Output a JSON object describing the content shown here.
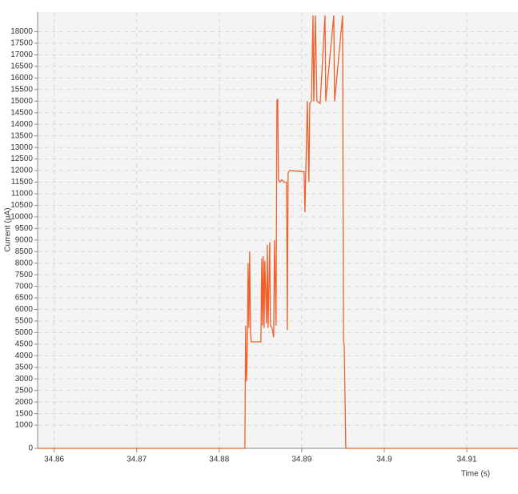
{
  "chart_data": {
    "type": "line",
    "y_label": "Current (µA)",
    "x_label": "Time (s)",
    "color": "#f0602a",
    "grid": true,
    "xlim": [
      34.858,
      34.9162
    ],
    "xticks": [
      34.86,
      34.87,
      34.88,
      34.89,
      34.9,
      34.91
    ],
    "ylim": [
      0,
      18850
    ],
    "yticks": [
      0,
      1000,
      1500,
      2000,
      2500,
      3000,
      3500,
      4000,
      4500,
      5000,
      5500,
      6000,
      6500,
      7000,
      7500,
      8000,
      8500,
      9000,
      9500,
      10000,
      10500,
      11000,
      11500,
      12000,
      12500,
      13000,
      13500,
      14000,
      14500,
      15000,
      15500,
      16000,
      16500,
      17000,
      17500,
      18000
    ],
    "x": [
      34.858,
      34.88311,
      34.8832,
      34.8833,
      34.8834,
      34.8835,
      34.88359,
      34.88369,
      34.88379,
      34.88388,
      34.88505,
      34.88515,
      34.88524,
      34.88534,
      34.88544,
      34.88553,
      34.88573,
      34.88583,
      34.88592,
      34.88612,
      34.88621,
      34.88641,
      34.8866,
      34.8867,
      34.88689,
      34.88699,
      34.88709,
      34.88718,
      34.88738,
      34.88757,
      34.88786,
      34.88816,
      34.88825,
      34.88835,
      34.88854,
      34.89029,
      34.89039,
      34.89049,
      34.89068,
      34.89087,
      34.89097,
      34.89117,
      34.89136,
      34.89146,
      34.89165,
      34.89184,
      34.89223,
      34.89282,
      34.89291,
      34.89388,
      34.89398,
      34.89495,
      34.89505,
      34.89515,
      34.89534,
      34.9162
    ],
    "values": [
      0,
      0,
      5300,
      2900,
      4200,
      8000,
      5200,
      8500,
      5000,
      4600,
      4600,
      8200,
      5300,
      8300,
      5200,
      8100,
      5400,
      8800,
      5200,
      8900,
      5300,
      5200,
      4800,
      9000,
      5300,
      15000,
      15100,
      11600,
      11500,
      11600,
      11500,
      11500,
      5100,
      11900,
      12000,
      11950,
      10200,
      12000,
      15000,
      11500,
      14900,
      15000,
      18700,
      15000,
      18700,
      15000,
      14900,
      18700,
      15000,
      18700,
      15000,
      18700,
      4700,
      4400,
      0,
      0
    ]
  }
}
